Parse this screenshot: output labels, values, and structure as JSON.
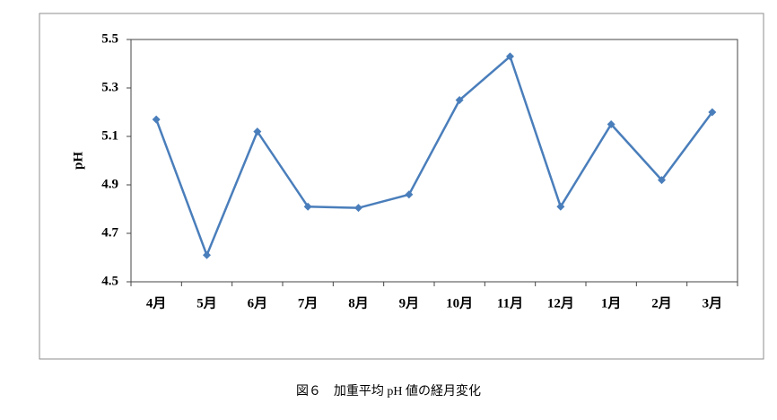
{
  "chart_data": {
    "type": "line",
    "caption": "図６　加重平均 pH 値の経月変化",
    "ylabel": "pH",
    "categories": [
      "4月",
      "5月",
      "6月",
      "7月",
      "8月",
      "9月",
      "10月",
      "11月",
      "12月",
      "1月",
      "2月",
      "3月"
    ],
    "series": [
      {
        "name": "pH",
        "color": "#4a7ebb",
        "values": [
          5.17,
          4.61,
          5.12,
          4.81,
          4.805,
          4.86,
          5.25,
          5.43,
          4.81,
          5.15,
          4.92,
          5.2
        ]
      }
    ],
    "ylim": [
      4.5,
      5.5
    ],
    "yticks": [
      4.5,
      4.7,
      4.9,
      5.1,
      5.3,
      5.5
    ],
    "grid": false
  }
}
